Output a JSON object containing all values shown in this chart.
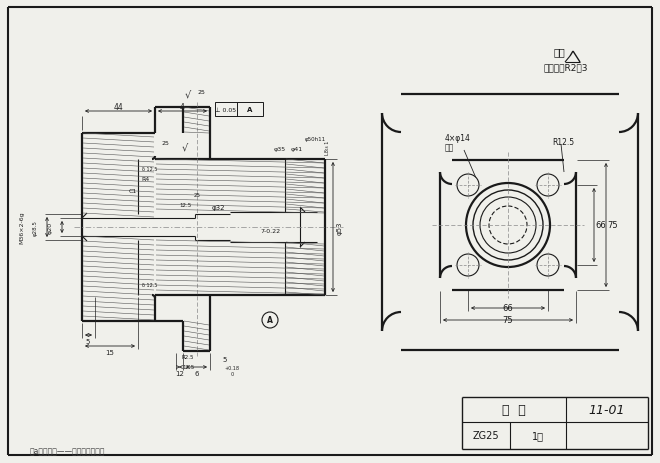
{
  "bg_color": "#f0f0eb",
  "line_color": "#1a1a1a",
  "title_block": {
    "part_name": "阀  盖",
    "part_no": "11-01",
    "material": "ZG25",
    "qty": "1件"
  },
  "note1": "其余",
  "note2": "未注圆角R2～3",
  "bottom_note": "（a）重件上——合适形状右视图"
}
